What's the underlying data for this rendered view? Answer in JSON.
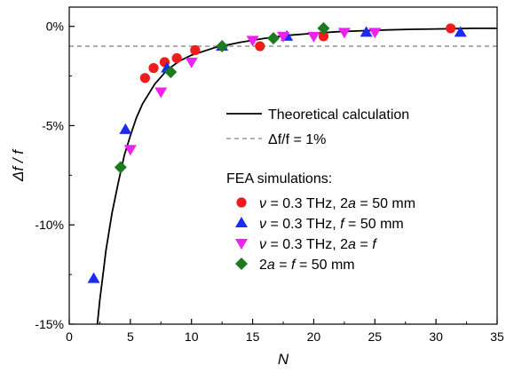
{
  "chart_data": {
    "type": "scatter",
    "xlabel": "N",
    "ylabel": "Δf / f",
    "xlim": [
      0,
      35
    ],
    "ylim": [
      -15,
      1
    ],
    "x_ticks": [
      0,
      5,
      10,
      15,
      20,
      25,
      30,
      35
    ],
    "y_ticks": [
      {
        "value": 0,
        "label": "0%"
      },
      {
        "value": -5,
        "label": "-5%"
      },
      {
        "value": -10,
        "label": "-10%"
      },
      {
        "value": -15,
        "label": "-15%"
      }
    ],
    "grid": false,
    "legend_position": "right",
    "lines": [
      {
        "name": "Theoretical calculation",
        "style": "solid",
        "color": "#000000",
        "x": [
          2.3,
          2.5,
          2.8,
          3.0,
          3.5,
          4.0,
          4.5,
          5.0,
          5.5,
          6.0,
          7.0,
          8.0,
          9.0,
          10.0,
          12.0,
          14.0,
          16.0,
          18.0,
          20.0,
          22.0,
          24.0,
          26.0,
          28.0,
          30.0,
          33.0,
          35.0
        ],
        "y": [
          -15.0,
          -13.8,
          -12.3,
          -11.3,
          -9.4,
          -7.9,
          -6.5,
          -5.5,
          -4.6,
          -3.9,
          -2.9,
          -2.2,
          -1.75,
          -1.45,
          -1.05,
          -0.8,
          -0.6,
          -0.45,
          -0.35,
          -0.27,
          -0.22,
          -0.18,
          -0.15,
          -0.13,
          -0.1,
          -0.1
        ]
      },
      {
        "name": "Δf/f = 1%",
        "style": "dashed",
        "color": "#999999",
        "x": [
          0,
          35
        ],
        "y": [
          -1,
          -1
        ]
      }
    ],
    "legend_group_title": "FEA simulations:",
    "series": [
      {
        "name_parts": [
          "ν",
          " = 0.3 THz, 2",
          "a",
          " = 50 mm"
        ],
        "marker": "circle",
        "color": "#ee1c1c",
        "x": [
          6.2,
          6.9,
          7.8,
          8.8,
          10.3,
          15.6,
          20.8,
          31.2
        ],
        "y": [
          -2.6,
          -2.1,
          -1.8,
          -1.6,
          -1.2,
          -1.0,
          -0.5,
          -0.1
        ]
      },
      {
        "name_parts": [
          "ν",
          " = 0.3 THz, ",
          "f",
          " = 50 mm"
        ],
        "marker": "triangle-up",
        "color": "#1c2cee",
        "x": [
          2.0,
          4.6,
          8.0,
          12.5,
          17.8,
          24.3,
          32.0
        ],
        "y": [
          -12.7,
          -5.2,
          -2.1,
          -1.0,
          -0.5,
          -0.3,
          -0.3
        ]
      },
      {
        "name_parts": [
          "ν",
          " = 0.3 THz, 2",
          "a",
          " = ",
          "f"
        ],
        "marker": "triangle-down",
        "color": "#ee22ee",
        "x": [
          5.0,
          7.5,
          10.0,
          15.0,
          17.5,
          20.0,
          22.5,
          25.0
        ],
        "y": [
          -6.2,
          -3.3,
          -1.8,
          -0.7,
          -0.5,
          -0.5,
          -0.3,
          -0.3
        ]
      },
      {
        "name_parts": [
          "2",
          "a",
          " = ",
          "f",
          " = 50 mm"
        ],
        "marker": "diamond",
        "color": "#1e7a1e",
        "x": [
          4.2,
          8.3,
          12.5,
          16.7,
          20.8
        ],
        "y": [
          -7.1,
          -2.3,
          -1.0,
          -0.6,
          -0.1
        ]
      }
    ]
  }
}
